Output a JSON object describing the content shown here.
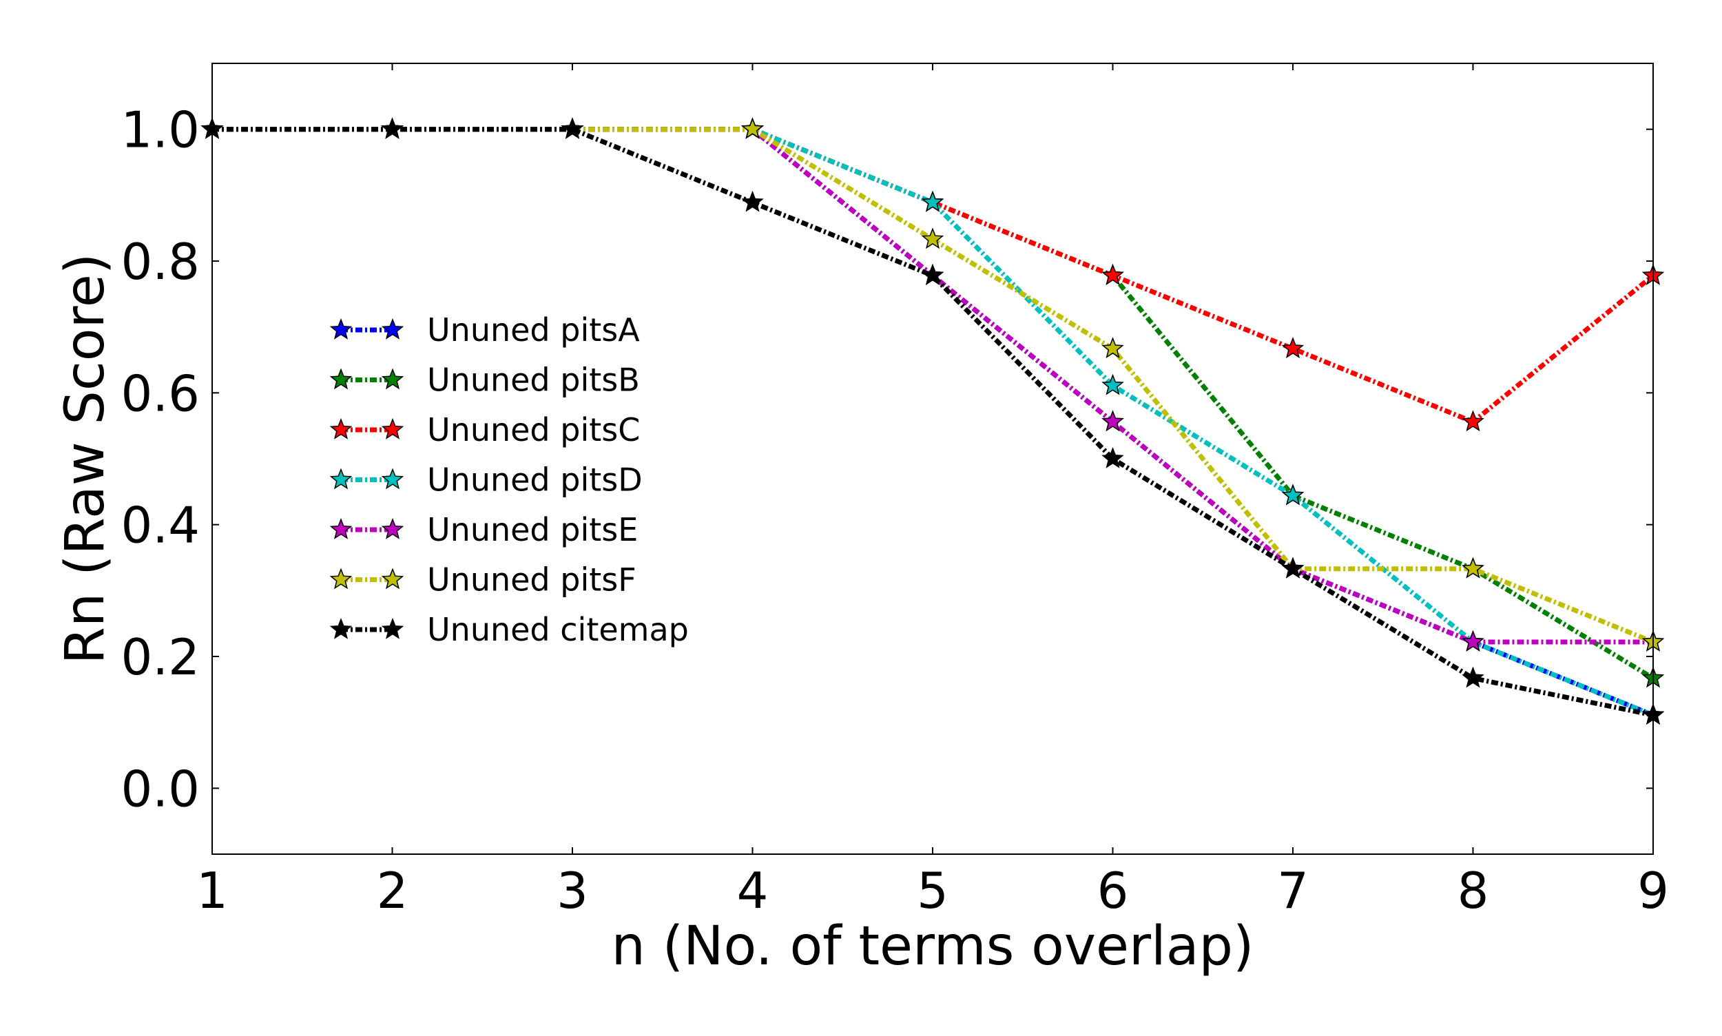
{
  "chart_data": {
    "type": "line",
    "title": "",
    "xlabel": "n (No. of terms overlap)",
    "ylabel": "Rn (Raw Score)",
    "xlim": [
      1,
      9
    ],
    "ylim": [
      -0.1,
      1.1
    ],
    "x": [
      1,
      2,
      3,
      4,
      5,
      6,
      7,
      8,
      9
    ],
    "x_ticks": [
      "1",
      "2",
      "3",
      "4",
      "5",
      "6",
      "7",
      "8",
      "9"
    ],
    "y_ticks": [
      "0.0",
      "0.2",
      "0.4",
      "0.6",
      "0.8",
      "1.0"
    ],
    "grid": false,
    "legend_position": "center-left",
    "line_style": "dash-dot",
    "marker": "star",
    "series": [
      {
        "name": "Ununed pitsA",
        "color": "#0000ff",
        "values": [
          1.0,
          1.0,
          1.0,
          1.0,
          0.778,
          0.556,
          0.333,
          0.222,
          0.111
        ]
      },
      {
        "name": "Ununed pitsB",
        "color": "#008000",
        "values": [
          1.0,
          1.0,
          1.0,
          1.0,
          0.889,
          0.778,
          0.444,
          0.333,
          0.167
        ]
      },
      {
        "name": "Ununed pitsC",
        "color": "#ff0000",
        "values": [
          1.0,
          1.0,
          1.0,
          1.0,
          0.889,
          0.778,
          0.667,
          0.556,
          0.778
        ]
      },
      {
        "name": "Ununed pitsD",
        "color": "#00bfbf",
        "values": [
          1.0,
          1.0,
          1.0,
          1.0,
          0.889,
          0.611,
          0.444,
          0.222,
          0.111
        ]
      },
      {
        "name": "Ununed pitsE",
        "color": "#bf00bf",
        "values": [
          1.0,
          1.0,
          1.0,
          1.0,
          0.778,
          0.556,
          0.333,
          0.222,
          0.222
        ]
      },
      {
        "name": "Ununed pitsF",
        "color": "#bfbf00",
        "values": [
          1.0,
          1.0,
          1.0,
          1.0,
          0.833,
          0.667,
          0.333,
          0.333,
          0.222
        ]
      },
      {
        "name": "Ununed citemap",
        "color": "#000000",
        "values": [
          1.0,
          1.0,
          1.0,
          0.889,
          0.778,
          0.5,
          0.333,
          0.167,
          0.111
        ]
      }
    ]
  }
}
